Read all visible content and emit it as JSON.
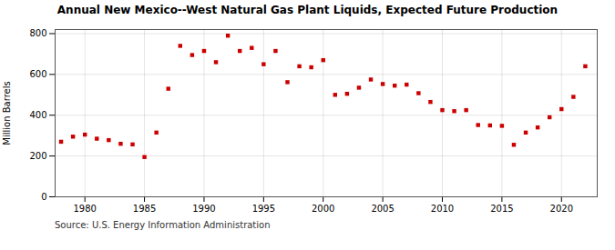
{
  "chart_data": {
    "type": "scatter",
    "title": "Annual New Mexico--West Natural Gas Plant Liquids, Expected Future Production",
    "ylabel": "Million Barrels",
    "source": "Source: U.S. Energy Information Administration",
    "x": [
      1978,
      1979,
      1980,
      1981,
      1982,
      1983,
      1984,
      1985,
      1986,
      1987,
      1988,
      1989,
      1990,
      1991,
      1992,
      1993,
      1994,
      1995,
      1996,
      1997,
      1998,
      1999,
      2000,
      2001,
      2002,
      2003,
      2004,
      2005,
      2006,
      2007,
      2008,
      2009,
      2010,
      2011,
      2012,
      2013,
      2014,
      2015,
      2016,
      2017,
      2018,
      2019,
      2020,
      2021,
      2022
    ],
    "values": [
      270,
      295,
      305,
      285,
      278,
      260,
      257,
      195,
      315,
      530,
      740,
      695,
      715,
      660,
      790,
      715,
      730,
      650,
      715,
      562,
      640,
      635,
      670,
      500,
      505,
      535,
      575,
      553,
      545,
      550,
      508,
      465,
      425,
      420,
      425,
      352,
      350,
      348,
      255,
      315,
      340,
      390,
      430,
      490,
      640
    ],
    "color": "#cc0000",
    "marker": "square",
    "xlim": [
      1977.5,
      2023
    ],
    "ylim": [
      0,
      820
    ],
    "xticks": [
      1980,
      1985,
      1990,
      1995,
      2000,
      2005,
      2010,
      2015,
      2020
    ],
    "yticks": [
      0,
      200,
      400,
      600,
      800
    ],
    "grid": true
  }
}
